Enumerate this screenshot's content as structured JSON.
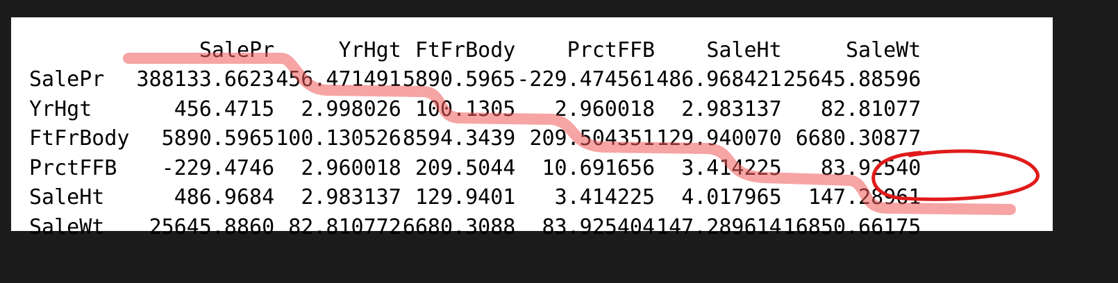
{
  "matrix": {
    "columns": [
      "SalePr",
      "YrHgt",
      "FtFrBody",
      "PrctFFB",
      "SaleHt",
      "SaleWt"
    ],
    "rows": [
      {
        "label": "SalePr",
        "cells": [
          "388133.6623",
          "456.471491",
          "5890.5965",
          "-229.474561",
          "486.968421",
          "25645.88596"
        ]
      },
      {
        "label": "YrHgt",
        "cells": [
          "456.4715",
          "2.998026",
          "100.1305",
          "2.960018",
          "2.983137",
          "82.81077"
        ]
      },
      {
        "label": "FtFrBody",
        "cells": [
          "5890.5965",
          "100.130526",
          "8594.3439",
          "209.504351",
          "129.940070",
          "6680.30877"
        ]
      },
      {
        "label": "PrctFFB",
        "cells": [
          "-229.4746",
          "2.960018",
          "209.5044",
          "10.691656",
          "3.414225",
          "83.92540"
        ]
      },
      {
        "label": "SaleHt",
        "cells": [
          "486.9684",
          "2.983137",
          "129.9401",
          "3.414225",
          "4.017965",
          "147.28961"
        ]
      },
      {
        "label": "SaleWt",
        "cells": [
          "25645.8860",
          "82.810772",
          "6680.3088",
          "83.925404",
          "147.289614",
          "16850.66175"
        ]
      }
    ]
  },
  "annotations": {
    "highlight_color": "#f05a5a",
    "circle_color": "#e01a1a"
  }
}
